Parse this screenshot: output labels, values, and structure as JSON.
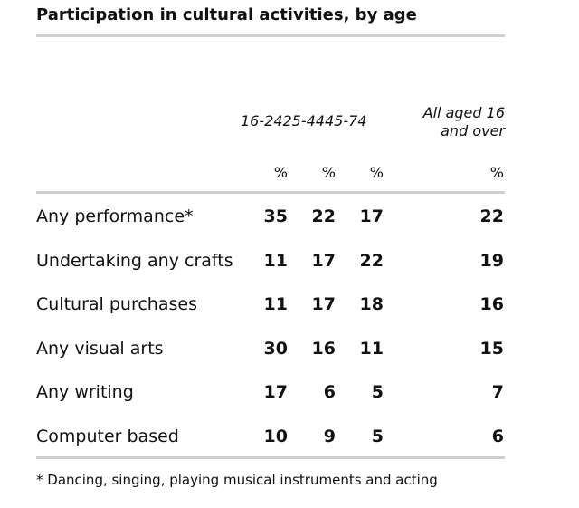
{
  "chart_data": {
    "type": "table",
    "title": "Participation in cultural activities, by age",
    "column_headers": {
      "ages": "16-2425-4445-74",
      "all_line1": "All aged 16",
      "all_line2": "and over"
    },
    "units": [
      "%",
      "%",
      "%",
      "%"
    ],
    "rows": [
      {
        "label": "Any performance*",
        "values": [
          "35",
          "22",
          "17",
          "22"
        ]
      },
      {
        "label": "Undertaking any crafts",
        "values": [
          "11",
          "17",
          "22",
          "19"
        ]
      },
      {
        "label": "Cultural purchases",
        "values": [
          "11",
          "17",
          "18",
          "16"
        ]
      },
      {
        "label": "Any visual arts",
        "values": [
          "30",
          "16",
          "11",
          "15"
        ]
      },
      {
        "label": "Any writing",
        "values": [
          "17",
          "6",
          "5",
          "7"
        ]
      },
      {
        "label": "Computer based",
        "values": [
          "10",
          "9",
          "5",
          "6"
        ]
      }
    ],
    "footnote": "* Dancing, singing, playing musical instruments and acting"
  }
}
